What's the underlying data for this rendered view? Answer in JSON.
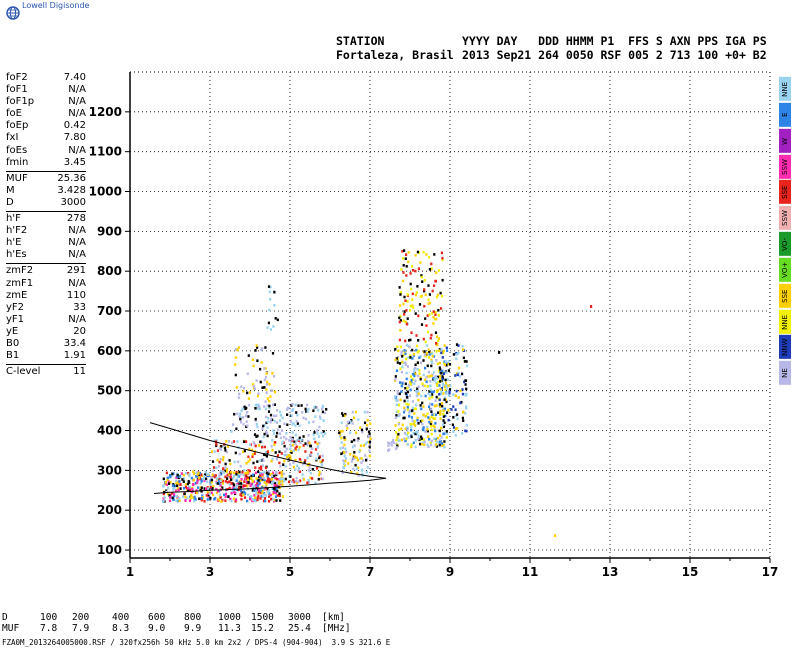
{
  "app": {
    "brand": "Lowell Digisonde"
  },
  "header": {
    "station_label": "STATION",
    "col_labels": "YYYY DAY   DDD HHMM P1  FFS S AXN PPS IGA PS",
    "station_name": "Fortaleza, Brasil",
    "values": "2013 Sep21 264 0050 RSF 005 2 713 100 +0+ B2"
  },
  "params": {
    "group1": [
      {
        "k": "foF2",
        "v": "7.40"
      },
      {
        "k": "foF1",
        "v": "N/A"
      },
      {
        "k": "foF1p",
        "v": "N/A"
      },
      {
        "k": "foE",
        "v": "N/A"
      },
      {
        "k": "foEp",
        "v": "0.42"
      },
      {
        "k": "fxI",
        "v": "7.80"
      },
      {
        "k": "foEs",
        "v": "N/A"
      },
      {
        "k": "fmin",
        "v": "3.45"
      }
    ],
    "group2": [
      {
        "k": "MUF",
        "v": "25.36"
      },
      {
        "k": "M",
        "v": "3.428"
      },
      {
        "k": "D",
        "v": "3000"
      }
    ],
    "group3": [
      {
        "k": "h'F",
        "v": "278"
      },
      {
        "k": "h'F2",
        "v": "N/A"
      },
      {
        "k": "h'E",
        "v": "N/A"
      },
      {
        "k": "h'Es",
        "v": "N/A"
      }
    ],
    "group4": [
      {
        "k": "zmF2",
        "v": "291"
      },
      {
        "k": "zmF1",
        "v": "N/A"
      },
      {
        "k": "zmE",
        "v": "110"
      },
      {
        "k": "yF2",
        "v": "33"
      },
      {
        "k": "yF1",
        "v": "N/A"
      },
      {
        "k": "yE",
        "v": "20"
      },
      {
        "k": "B0",
        "v": "33.4"
      },
      {
        "k": "B1",
        "v": "1.91"
      }
    ],
    "group5": [
      {
        "k": "C-level",
        "v": "11"
      }
    ]
  },
  "legend": [
    {
      "label": "NNE",
      "color": "#9ad3f0"
    },
    {
      "label": "E",
      "color": "#2e84e6"
    },
    {
      "label": "W",
      "color": "#a020c0"
    },
    {
      "label": "SSW",
      "color": "#ff2cb0"
    },
    {
      "label": "SSE",
      "color": "#e8241c"
    },
    {
      "label": "SSW",
      "color": "#f0b0b0"
    },
    {
      "label": "VO-",
      "color": "#1a9a2a"
    },
    {
      "label": "VO+",
      "color": "#66dd22"
    },
    {
      "label": "SSE",
      "color": "#ffd000"
    },
    {
      "label": "NNE",
      "color": "#f0f000"
    },
    {
      "label": "NNW",
      "color": "#1e3cb8"
    },
    {
      "label": "NE",
      "color": "#b8b8e8"
    }
  ],
  "muf_table": {
    "d_label": "D",
    "d_values": [
      "100",
      "200",
      "400",
      "600",
      "800",
      "1000",
      "1500",
      "3000"
    ],
    "d_unit": "[km]",
    "muf_label": "MUF",
    "muf_values": [
      "7.8",
      "7.9",
      "8.3",
      "9.0",
      "9.9",
      "11.3",
      "15.2",
      "25.4"
    ],
    "muf_unit": "[MHz]"
  },
  "footer": "FZA0M_2013264005000.RSF / 320fx256h 50 kHz 5.0 km 2x2 / DPS-4 (904-904)  3.9 S 321.6 E",
  "chart_data": {
    "type": "scatter",
    "xlim": [
      1,
      17
    ],
    "ylim": [
      80,
      1300
    ],
    "xticks": [
      1,
      3,
      5,
      7,
      9,
      11,
      13,
      15,
      17
    ],
    "yticks": [
      100,
      200,
      300,
      400,
      500,
      600,
      700,
      800,
      900,
      1000,
      1100,
      1200
    ],
    "grid": "dotted",
    "trace_line": [
      [
        1.5,
        420
      ],
      [
        2.0,
        405
      ],
      [
        2.5,
        390
      ],
      [
        3.0,
        375
      ],
      [
        3.5,
        362
      ],
      [
        4.0,
        350
      ],
      [
        4.5,
        338
      ],
      [
        5.0,
        326
      ],
      [
        5.5,
        314
      ],
      [
        6.0,
        303
      ],
      [
        6.5,
        293
      ],
      [
        7.0,
        285
      ],
      [
        7.4,
        280
      ],
      [
        7.0,
        275
      ],
      [
        6.5,
        271
      ],
      [
        6.0,
        268
      ],
      [
        5.5,
        264
      ],
      [
        5.0,
        260
      ],
      [
        4.5,
        257
      ],
      [
        4.0,
        254
      ],
      [
        3.5,
        252
      ],
      [
        3.0,
        250
      ],
      [
        2.5,
        247
      ],
      [
        2.0,
        245
      ],
      [
        1.6,
        242
      ]
    ],
    "echo_clusters": [
      {
        "x": [
          1.8,
          4.8
        ],
        "y": [
          225,
          300
        ],
        "n": 520,
        "colors": [
          "#2e84e6",
          "#9ad3f0",
          "#000000",
          "#e8241c",
          "#ffd000",
          "#ff2cb0"
        ]
      },
      {
        "x": [
          3.0,
          5.8
        ],
        "y": [
          270,
          380
        ],
        "n": 300,
        "colors": [
          "#e8241c",
          "#000000",
          "#b8b8e8",
          "#9ad3f0",
          "#ffd000"
        ]
      },
      {
        "x": [
          3.5,
          5.9
        ],
        "y": [
          380,
          470
        ],
        "n": 160,
        "colors": [
          "#b8b8e8",
          "#9ad3f0",
          "#000000"
        ]
      },
      {
        "x": [
          3.6,
          4.6
        ],
        "y": [
          470,
          620
        ],
        "n": 60,
        "colors": [
          "#ffd000",
          "#000000",
          "#b8b8e8"
        ]
      },
      {
        "x": [
          4.4,
          4.7
        ],
        "y": [
          640,
          770
        ],
        "n": 14,
        "colors": [
          "#000000",
          "#9ad3f0"
        ]
      },
      {
        "x": [
          6.2,
          7.0
        ],
        "y": [
          290,
          450
        ],
        "n": 110,
        "colors": [
          "#b8b8e8",
          "#9ad3f0",
          "#000000",
          "#ffd000"
        ]
      },
      {
        "x": [
          7.6,
          8.9
        ],
        "y": [
          360,
          620
        ],
        "n": 420,
        "colors": [
          "#f0f000",
          "#ffd000",
          "#b8b8e8",
          "#000000",
          "#2e84e6",
          "#9ad3f0"
        ]
      },
      {
        "x": [
          7.7,
          8.8
        ],
        "y": [
          620,
          860
        ],
        "n": 130,
        "colors": [
          "#ffd000",
          "#000000",
          "#e8241c",
          "#f0f000"
        ]
      },
      {
        "x": [
          8.7,
          9.4
        ],
        "y": [
          390,
          620
        ],
        "n": 120,
        "colors": [
          "#000000",
          "#1e3cb8",
          "#ffd000",
          "#9ad3f0"
        ]
      },
      {
        "x": [
          7.4,
          7.8
        ],
        "y": [
          350,
          380
        ],
        "n": 10,
        "colors": [
          "#b8b8e8"
        ]
      }
    ],
    "isolated_points": [
      [
        10.2,
        600,
        "#000000"
      ],
      [
        11.6,
        140,
        "#ffd000"
      ],
      [
        12.5,
        715,
        "#e8241c"
      ]
    ]
  }
}
